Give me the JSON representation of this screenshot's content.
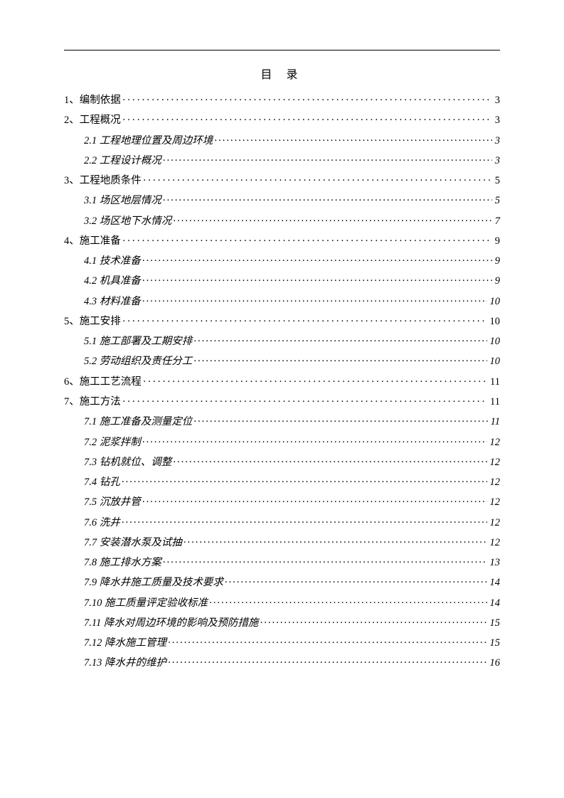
{
  "title": "目 录",
  "entries": [
    {
      "level": 0,
      "label": "1、编制依据",
      "page": "3"
    },
    {
      "level": 0,
      "label": "2、工程概况",
      "page": "3"
    },
    {
      "level": 1,
      "label": "2.1 工程地理位置及周边环境",
      "page": "3"
    },
    {
      "level": 1,
      "label": "2.2 工程设计概况",
      "page": "3"
    },
    {
      "level": 0,
      "label": "3、工程地质条件",
      "page": "5"
    },
    {
      "level": 1,
      "label": "3.1 场区地层情况",
      "page": "5"
    },
    {
      "level": 1,
      "label": "3.2 场区地下水情况",
      "page": "7"
    },
    {
      "level": 0,
      "label": "4、施工准备",
      "page": "9"
    },
    {
      "level": 1,
      "label": "4.1 技术准备",
      "page": "9"
    },
    {
      "level": 1,
      "label": "4.2 机具准备",
      "page": "9"
    },
    {
      "level": 1,
      "label": "4.3 材料准备",
      "page": "10"
    },
    {
      "level": 0,
      "label": "5、施工安排",
      "page": "10"
    },
    {
      "level": 1,
      "label": "5.1 施工部署及工期安排",
      "page": "10"
    },
    {
      "level": 1,
      "label": "5.2 劳动组织及责任分工",
      "page": "10"
    },
    {
      "level": 0,
      "label": "6、施工工艺流程",
      "page": "11"
    },
    {
      "level": 0,
      "label": "7、施工方法",
      "page": "11"
    },
    {
      "level": 1,
      "label": "7.1 施工准备及测量定位",
      "page": "11"
    },
    {
      "level": 1,
      "label": "7.2 泥浆拌制",
      "page": "12"
    },
    {
      "level": 1,
      "label": "7.3 钻机就位、调整",
      "page": "12"
    },
    {
      "level": 1,
      "label": "7.4 钻孔",
      "page": "12"
    },
    {
      "level": 1,
      "label": "7.5 沉放井管",
      "page": "12"
    },
    {
      "level": 1,
      "label": "7.6 洗井",
      "page": "12"
    },
    {
      "level": 1,
      "label": "7.7 安装潜水泵及试抽",
      "page": "12"
    },
    {
      "level": 1,
      "label": "7.8 施工排水方案",
      "page": "13"
    },
    {
      "level": 1,
      "label": "7.9 降水井施工质量及技术要求",
      "page": "14"
    },
    {
      "level": 1,
      "label": "7.10 施工质量评定验收标准",
      "page": "14"
    },
    {
      "level": 1,
      "label": "7.11 降水对周边环境的影响及预防措施",
      "page": "15"
    },
    {
      "level": 1,
      "label": "7.12 降水施工管理",
      "page": "15"
    },
    {
      "level": 1,
      "label": "7.13 降水井的维护",
      "page": "16"
    }
  ]
}
